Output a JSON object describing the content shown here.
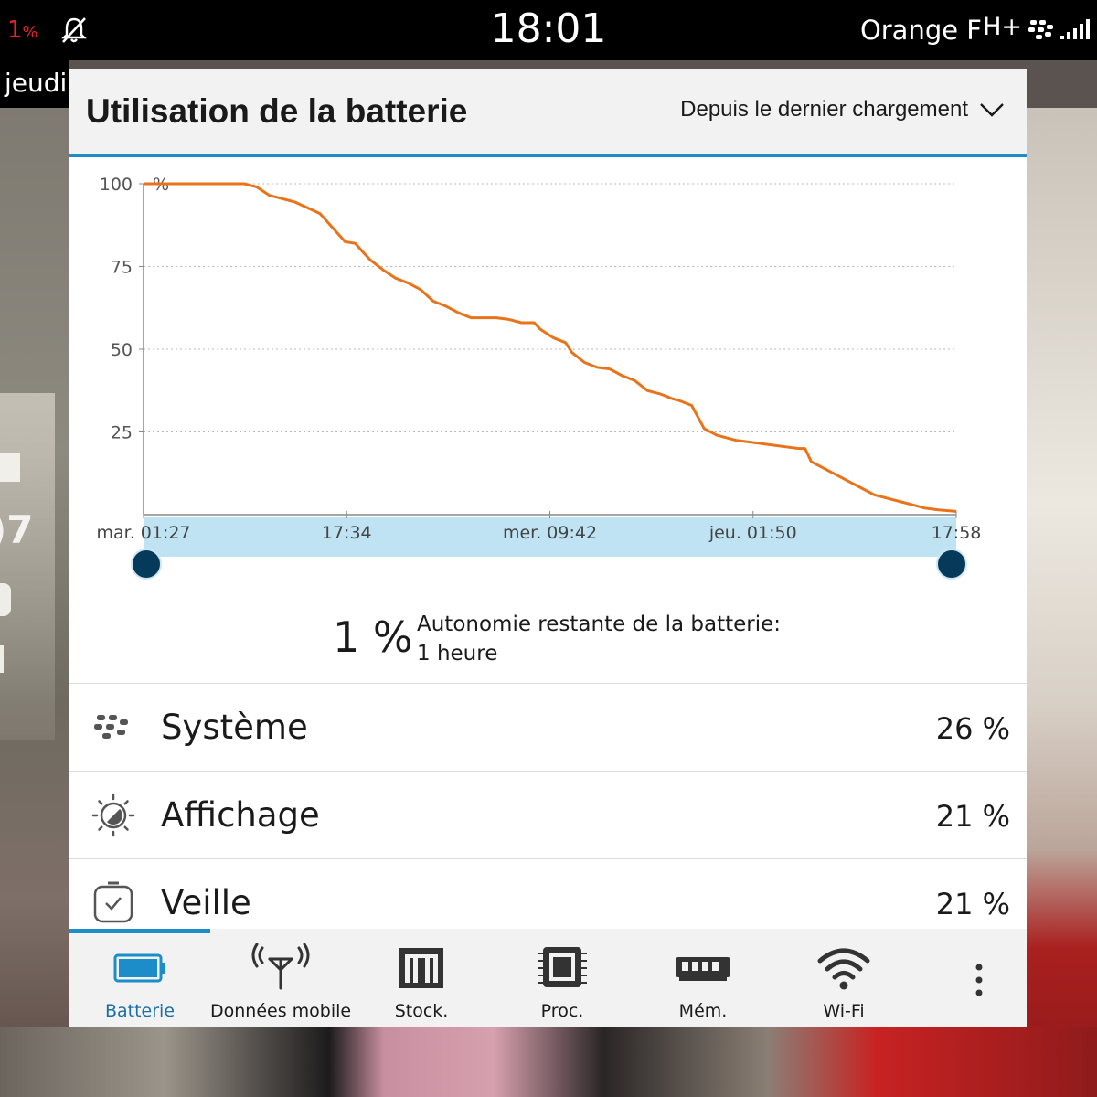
{
  "status_bar": {
    "battery_value": "1",
    "battery_unit": "%",
    "time": "18:01",
    "carrier": "Orange F",
    "network": "H+",
    "icons": [
      "notifications-muted-icon",
      "bbm-icon",
      "signal-icon"
    ]
  },
  "lock_screen": {
    "day": "jeudi"
  },
  "panel": {
    "title": "Utilisation de la batterie",
    "period": "Depuis le dernier chargement"
  },
  "chart_data": {
    "type": "line",
    "title": "",
    "ylabel": "%",
    "xlabel": "",
    "ylim": [
      0,
      100
    ],
    "yticks": [
      100,
      75,
      50,
      25
    ],
    "x_tick_labels": [
      "mar. 01:27",
      "17:34",
      "mer. 09:42",
      "jeu. 01:50",
      "17:58"
    ],
    "x_range_hours": [
      0,
      64.5
    ],
    "grid": true,
    "line_color": "#e8731a",
    "selection_color": "#bfe3f3",
    "series": [
      {
        "x": [
          0,
          8,
          9,
          10,
          12,
          14,
          16,
          16.8,
          17.5,
          18,
          19,
          20,
          21,
          22,
          23,
          24,
          25,
          26,
          27,
          28,
          29,
          30,
          31,
          31.5,
          32.5,
          33.5,
          34,
          35,
          36,
          37,
          38,
          39,
          40,
          41,
          42,
          42.5,
          43.5,
          44.5,
          45.5,
          46,
          47,
          48,
          49,
          50,
          51,
          52,
          52.5,
          53,
          54,
          55,
          56,
          57,
          58,
          59,
          60,
          61,
          62,
          63,
          64.5
        ],
        "values": [
          100,
          100,
          99,
          96.5,
          94.5,
          91,
          82.5,
          82,
          79,
          77,
          74,
          71.5,
          70,
          68,
          64.5,
          63,
          61,
          59.5,
          59.5,
          59.5,
          59,
          58,
          58,
          56,
          53.5,
          52,
          49,
          46,
          44.5,
          44,
          42,
          40.5,
          37.5,
          36.5,
          35,
          34.5,
          33,
          26,
          24,
          23.5,
          22.5,
          22,
          21.5,
          21,
          20.5,
          20,
          20,
          16,
          14,
          12,
          10,
          8,
          6,
          5,
          4,
          3,
          2,
          1.5,
          1
        ]
      }
    ]
  },
  "summary": {
    "percent": "1 %",
    "label": "Autonomie restante de la batterie:",
    "value": "1 heure"
  },
  "usage_items": [
    {
      "name": "Système",
      "percent": "26 %",
      "icon": "blackberry-icon"
    },
    {
      "name": "Affichage",
      "percent": "21 %",
      "icon": "brightness-icon"
    },
    {
      "name": "Veille",
      "percent": "21 %",
      "icon": "standby-icon"
    }
  ],
  "tabs": [
    {
      "label": "Batterie",
      "icon": "battery-icon",
      "active": true
    },
    {
      "label": "Données mobile",
      "icon": "antenna-icon",
      "active": false
    },
    {
      "label": "Stock.",
      "icon": "storage-icon",
      "active": false
    },
    {
      "label": "Proc.",
      "icon": "processor-icon",
      "active": false
    },
    {
      "label": "Mém.",
      "icon": "memory-icon",
      "active": false
    },
    {
      "label": "Wi-Fi",
      "icon": "wifi-icon",
      "active": false
    }
  ],
  "more_menu": {
    "icon": "more-vertical-icon"
  }
}
